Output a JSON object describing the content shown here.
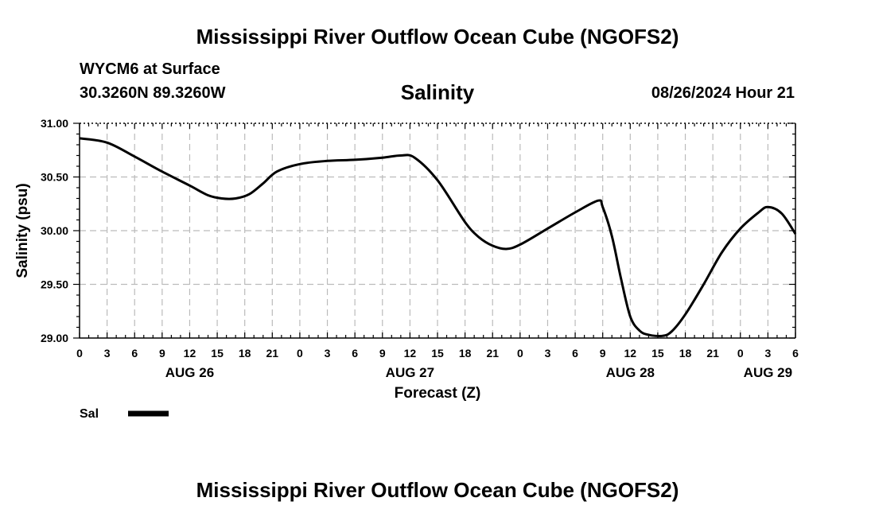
{
  "header": {
    "title": "Mississippi River Outflow Ocean Cube (NGOFS2)",
    "station": "WYCM6 at Surface",
    "coords": "30.3260N  89.3260W",
    "subtitle": "Salinity",
    "datetime": "08/26/2024 Hour 21"
  },
  "footer": {
    "title": "Mississippi River Outflow Ocean Cube (NGOFS2)"
  },
  "legend": {
    "label": "Sal"
  },
  "chart_data": {
    "type": "line",
    "title": "Salinity",
    "xlabel": "Forecast (Z)",
    "ylabel": "Salinity (psu)",
    "xlim": [
      0,
      78
    ],
    "ylim": [
      29.0,
      31.0
    ],
    "grid": true,
    "legend": "bottom-left",
    "y_ticks": [
      29.0,
      29.5,
      30.0,
      30.5,
      31.0
    ],
    "y_tick_labels": [
      "29.00",
      "29.50",
      "30.00",
      "30.50",
      "31.00"
    ],
    "x_ticks": [
      0,
      3,
      6,
      9,
      12,
      15,
      18,
      21,
      24,
      27,
      30,
      33,
      36,
      39,
      42,
      45,
      48,
      51,
      54,
      57,
      60,
      63,
      66,
      69,
      72,
      75,
      78
    ],
    "x_tick_labels": [
      "0",
      "3",
      "6",
      "9",
      "12",
      "15",
      "18",
      "21",
      "0",
      "3",
      "6",
      "9",
      "12",
      "15",
      "18",
      "21",
      "0",
      "3",
      "6",
      "9",
      "12",
      "15",
      "18",
      "21",
      "0",
      "3",
      "6"
    ],
    "date_labels": [
      {
        "hour": 12,
        "label": "AUG 26"
      },
      {
        "hour": 36,
        "label": "AUG 27"
      },
      {
        "hour": 60,
        "label": "AUG 28"
      },
      {
        "hour": 75,
        "label": "AUG 29"
      }
    ],
    "series": [
      {
        "name": "Sal",
        "x": [
          0,
          3,
          6,
          9,
          12,
          14,
          15.5,
          17,
          18.5,
          20,
          21.5,
          24,
          27,
          30,
          33,
          35,
          36.5,
          39,
          42,
          43.5,
          45,
          46.5,
          48,
          51,
          54,
          56.5,
          57,
          58,
          59,
          60,
          61,
          62,
          63.5,
          64.5,
          66,
          68,
          70,
          72,
          74,
          75,
          76.5,
          78
        ],
        "y": [
          30.86,
          30.82,
          30.69,
          30.55,
          30.42,
          30.33,
          30.3,
          30.3,
          30.34,
          30.44,
          30.55,
          30.62,
          30.65,
          30.66,
          30.68,
          30.7,
          30.68,
          30.47,
          30.08,
          29.94,
          29.86,
          29.83,
          29.87,
          30.02,
          30.17,
          30.28,
          30.22,
          29.95,
          29.55,
          29.2,
          29.07,
          29.03,
          29.02,
          29.06,
          29.22,
          29.5,
          29.8,
          30.02,
          30.17,
          30.22,
          30.16,
          29.97
        ]
      }
    ]
  }
}
